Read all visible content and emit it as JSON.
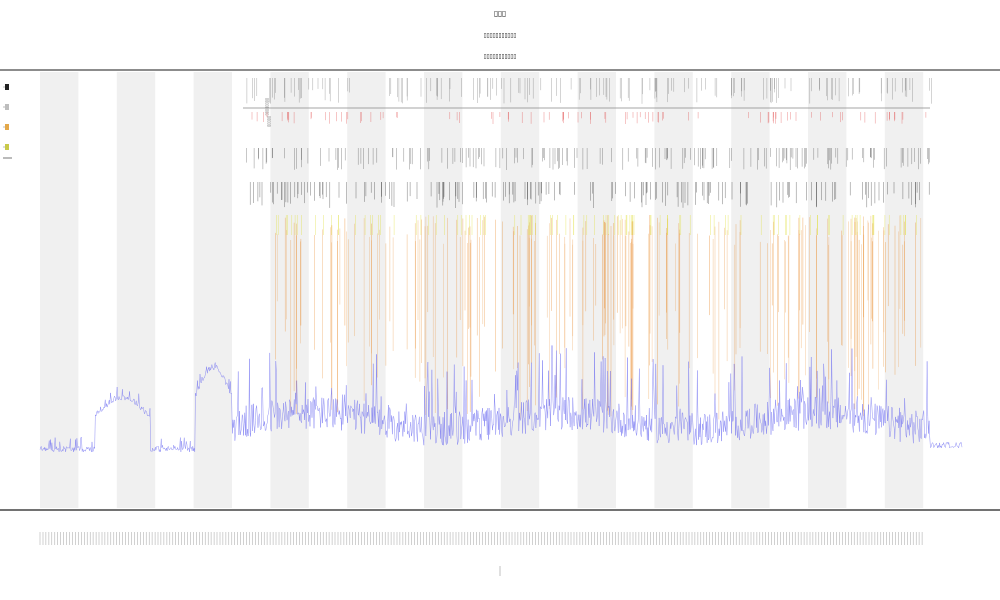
{
  "chart_data": {
    "type": "line",
    "title_lines": [
      "▯▯▯",
      "▯▯▯▯▯▯▯▯▯▯▯",
      "▯▯▯▯▯▯▯▯▯▯▯"
    ],
    "xlabel": "",
    "ylabel": "",
    "legend_placement": "top-left",
    "legend_items": [
      {
        "name": "",
        "color": "#222222"
      },
      {
        "name": "",
        "color": "#bdbdbd"
      },
      {
        "name": "",
        "color": "#e3a84a"
      },
      {
        "name": "",
        "color": "#c9c94a"
      }
    ],
    "band_color": "#f0f0f0",
    "band_count": 23,
    "series": [
      {
        "name": "",
        "color": "#6b6bf0",
        "style": "line"
      },
      {
        "name": "",
        "color": "#e88a2a",
        "style": "vertical-lines"
      },
      {
        "name": "",
        "color": "#e0e040",
        "style": "vertical-lines"
      },
      {
        "name": "",
        "color": "#555555",
        "style": "event-marks"
      },
      {
        "name": "",
        "color": "#e04040",
        "style": "event-marks"
      }
    ],
    "event_track_label": "▯▯▯▯▯▯▯▯",
    "event_track_label_2": "▯▯▯▯▯",
    "grid": false
  }
}
